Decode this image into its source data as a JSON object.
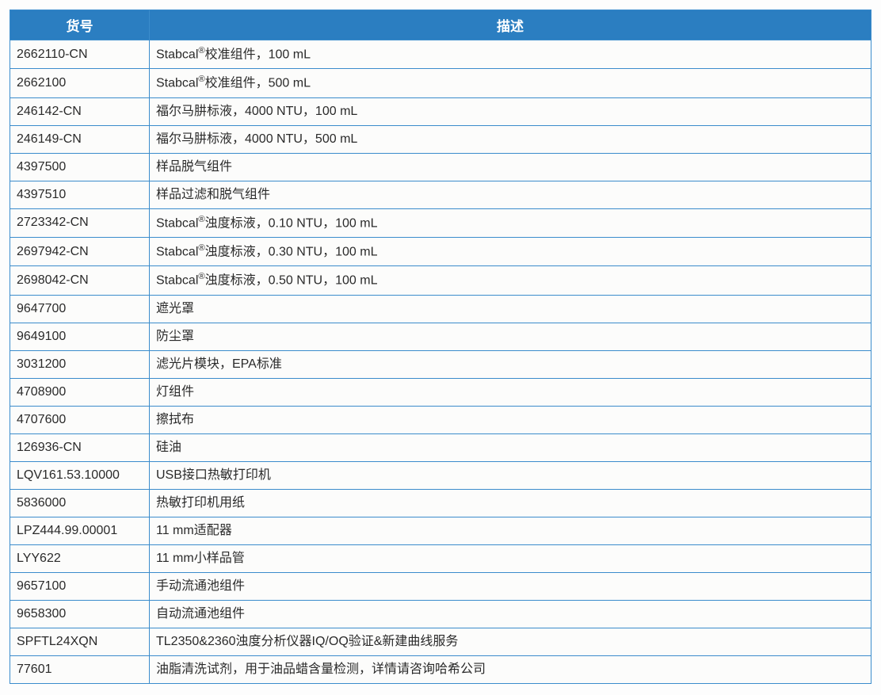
{
  "table": {
    "header_bg": "#2b7ec1",
    "header_color": "#ffffff",
    "border_color": "#3b8ccc",
    "cell_bg": "#fcfcfb",
    "text_color": "#2a2a2a",
    "col1_width": 176,
    "columns": [
      "货号",
      "描述"
    ],
    "rows": [
      {
        "code": "2662110-CN",
        "desc": "Stabcal®校准组件，100 mL",
        "has_sup": true
      },
      {
        "code": "2662100",
        "desc": "Stabcal®校准组件，500 mL",
        "has_sup": true
      },
      {
        "code": "246142-CN",
        "desc": "福尔马肼标液，4000 NTU，100 mL",
        "has_sup": false
      },
      {
        "code": "246149-CN",
        "desc": "福尔马肼标液，4000 NTU，500 mL",
        "has_sup": false
      },
      {
        "code": "4397500",
        "desc": "样品脱气组件",
        "has_sup": false
      },
      {
        "code": "4397510",
        "desc": "样品过滤和脱气组件",
        "has_sup": false
      },
      {
        "code": "2723342-CN",
        "desc": "Stabcal®浊度标液，0.10 NTU，100 mL",
        "has_sup": true
      },
      {
        "code": "2697942-CN",
        "desc": "Stabcal®浊度标液，0.30 NTU，100 mL",
        "has_sup": true
      },
      {
        "code": "2698042-CN",
        "desc": "Stabcal®浊度标液，0.50 NTU，100 mL",
        "has_sup": true
      },
      {
        "code": "9647700",
        "desc": "遮光罩",
        "has_sup": false
      },
      {
        "code": "9649100",
        "desc": "防尘罩",
        "has_sup": false
      },
      {
        "code": "3031200",
        "desc": "滤光片模块，EPA标准",
        "has_sup": false
      },
      {
        "code": "4708900",
        "desc": "灯组件",
        "has_sup": false
      },
      {
        "code": "4707600",
        "desc": "擦拭布",
        "has_sup": false
      },
      {
        "code": "126936-CN",
        "desc": "硅油",
        "has_sup": false
      },
      {
        "code": "LQV161.53.10000",
        "desc": "USB接口热敏打印机",
        "has_sup": false
      },
      {
        "code": "5836000",
        "desc": "热敏打印机用纸",
        "has_sup": false
      },
      {
        "code": "LPZ444.99.00001",
        "desc": "11 mm适配器",
        "has_sup": false
      },
      {
        "code": "LYY622",
        "desc": "11 mm小样品管",
        "has_sup": false
      },
      {
        "code": "9657100",
        "desc": "手动流通池组件",
        "has_sup": false
      },
      {
        "code": "9658300",
        "desc": "自动流通池组件",
        "has_sup": false
      },
      {
        "code": "SPFTL24XQN",
        "desc": "TL2350&2360浊度分析仪器IQ/OQ验证&新建曲线服务",
        "has_sup": false
      },
      {
        "code": "77601",
        "desc": "油脂清洗试剂，用于油品蜡含量检测，详情请咨询哈希公司",
        "has_sup": false
      }
    ]
  }
}
